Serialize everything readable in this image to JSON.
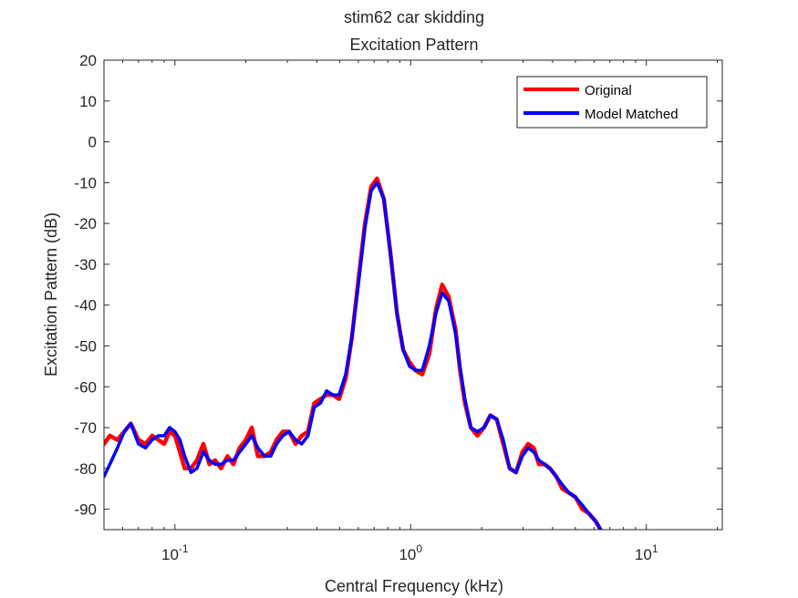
{
  "chart_data": {
    "type": "line",
    "title": "stim62 car skidding",
    "subtitle": "Excitation Pattern",
    "xlabel": "Central Frequency (kHz)",
    "ylabel": "Excitation Pattern (dB)",
    "xscale": "log",
    "xlim": [
      0.05,
      21
    ],
    "ylim": [
      -95,
      20
    ],
    "x_ticks": [
      {
        "value": 0.1,
        "base": "10",
        "exp": "-1"
      },
      {
        "value": 1,
        "base": "10",
        "exp": "0"
      },
      {
        "value": 10,
        "base": "10",
        "exp": "1"
      }
    ],
    "y_ticks": [
      20,
      10,
      0,
      -10,
      -20,
      -30,
      -40,
      -50,
      -60,
      -70,
      -80,
      -90
    ],
    "y_tick_labels": [
      "20",
      "10",
      "0",
      "-10",
      "-20",
      "-30",
      "-40",
      "-50",
      "-60",
      "-70",
      "-80",
      "-90"
    ],
    "grid": false,
    "legend_position": "top-right",
    "series": [
      {
        "name": "Original",
        "color": "#ff0000",
        "x": [
          0.05,
          0.053,
          0.057,
          0.061,
          0.065,
          0.07,
          0.075,
          0.08,
          0.085,
          0.09,
          0.095,
          0.1,
          0.105,
          0.11,
          0.117,
          0.124,
          0.132,
          0.14,
          0.148,
          0.157,
          0.167,
          0.177,
          0.188,
          0.2,
          0.212,
          0.225,
          0.24,
          0.255,
          0.27,
          0.287,
          0.305,
          0.325,
          0.345,
          0.367,
          0.39,
          0.415,
          0.44,
          0.468,
          0.497,
          0.53,
          0.563,
          0.6,
          0.64,
          0.68,
          0.72,
          0.77,
          0.82,
          0.875,
          0.93,
          0.99,
          1.05,
          1.12,
          1.2,
          1.28,
          1.36,
          1.45,
          1.55,
          1.62,
          1.7,
          1.8,
          1.92,
          2.05,
          2.18,
          2.32,
          2.47,
          2.63,
          2.8,
          2.98,
          3.15,
          3.33,
          3.5,
          3.7,
          3.9,
          4.15,
          4.4,
          4.7,
          5.0,
          5.35,
          5.7,
          6.1,
          6.4
        ],
        "y": [
          -74,
          -72,
          -73,
          -71,
          -69,
          -73,
          -74,
          -72,
          -73,
          -74,
          -71,
          -72,
          -76,
          -80,
          -80,
          -78,
          -74,
          -79,
          -78,
          -80,
          -77,
          -79,
          -75,
          -73,
          -70,
          -77,
          -77,
          -76,
          -73,
          -71,
          -71,
          -74,
          -72,
          -71,
          -64,
          -63,
          -62,
          -62,
          -63,
          -58,
          -48,
          -34,
          -20,
          -11,
          -9,
          -14,
          -27,
          -42,
          -51,
          -54,
          -56,
          -57,
          -52,
          -41,
          -35,
          -38,
          -46,
          -56,
          -64,
          -70,
          -72,
          -70,
          -67,
          -68,
          -74,
          -80,
          -81,
          -76,
          -74,
          -75,
          -79,
          -79,
          -80,
          -82,
          -85,
          -86,
          -87,
          -90,
          -91,
          -93,
          -95
        ]
      },
      {
        "name": "Model Matched",
        "color": "#0000ff",
        "x": [
          0.05,
          0.053,
          0.057,
          0.061,
          0.065,
          0.07,
          0.075,
          0.08,
          0.085,
          0.09,
          0.095,
          0.1,
          0.105,
          0.11,
          0.117,
          0.124,
          0.132,
          0.14,
          0.148,
          0.157,
          0.167,
          0.177,
          0.188,
          0.2,
          0.212,
          0.225,
          0.24,
          0.255,
          0.27,
          0.287,
          0.305,
          0.325,
          0.345,
          0.367,
          0.39,
          0.415,
          0.44,
          0.468,
          0.497,
          0.53,
          0.563,
          0.6,
          0.64,
          0.68,
          0.72,
          0.77,
          0.82,
          0.875,
          0.93,
          0.99,
          1.05,
          1.12,
          1.2,
          1.28,
          1.36,
          1.45,
          1.55,
          1.62,
          1.7,
          1.8,
          1.92,
          2.05,
          2.18,
          2.32,
          2.47,
          2.63,
          2.8,
          2.98,
          3.15,
          3.33,
          3.5,
          3.7,
          3.9,
          4.15,
          4.4,
          4.7,
          5.0,
          5.35,
          5.7,
          6.1,
          6.4
        ],
        "y": [
          -82,
          -79,
          -75,
          -71,
          -69,
          -74,
          -75,
          -73,
          -72,
          -72,
          -70,
          -71,
          -73,
          -77,
          -81,
          -80,
          -76,
          -78,
          -79,
          -79,
          -78,
          -78,
          -76,
          -74,
          -72,
          -75,
          -77,
          -77,
          -74,
          -72,
          -71,
          -73,
          -74,
          -72,
          -65,
          -64,
          -61,
          -62,
          -62,
          -57,
          -48,
          -35,
          -21,
          -12,
          -10,
          -14,
          -27,
          -42,
          -51,
          -55,
          -56,
          -56,
          -50,
          -42,
          -37,
          -39,
          -47,
          -55,
          -63,
          -70,
          -71,
          -70,
          -67,
          -68,
          -73,
          -80,
          -81,
          -77,
          -75,
          -76,
          -78,
          -79,
          -80,
          -82,
          -84,
          -86,
          -87,
          -89,
          -91,
          -93,
          -95
        ]
      }
    ]
  }
}
